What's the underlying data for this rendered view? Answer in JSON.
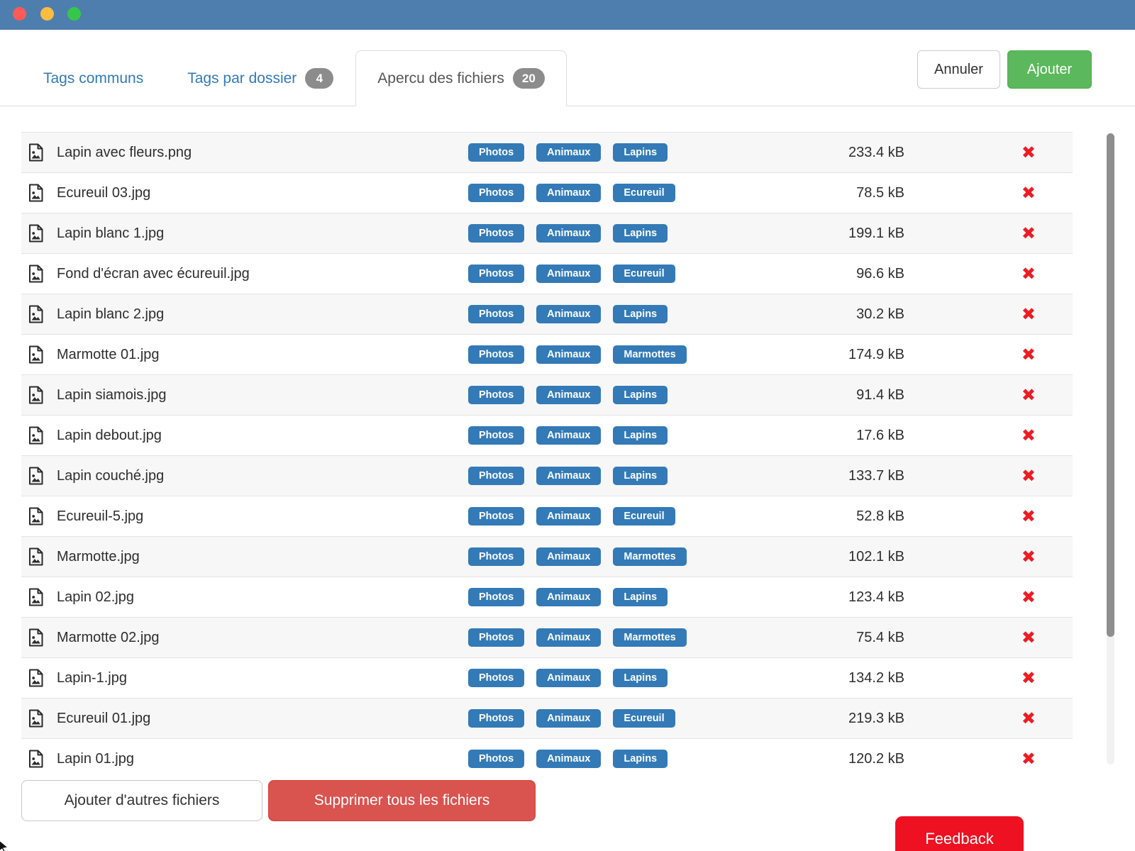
{
  "window": {
    "titlebar_color": "#4e7ead",
    "traffic_lights": [
      "close",
      "minimize",
      "maximize"
    ]
  },
  "tabs": [
    {
      "label": "Tags communs",
      "badge": "",
      "active": false
    },
    {
      "label": "Tags par dossier",
      "badge": "4",
      "active": false
    },
    {
      "label": "Apercu des fichiers",
      "badge": "20",
      "active": true
    }
  ],
  "header_buttons": {
    "cancel_label": "Annuler",
    "add_label": "Ajouter"
  },
  "file_list": {
    "delete_icon_glyph": "✖",
    "files": [
      {
        "name": "Lapin avec fleurs.png",
        "tags": [
          "Photos",
          "Animaux",
          "Lapins"
        ],
        "size": "233.4 kB"
      },
      {
        "name": "Ecureuil 03.jpg",
        "tags": [
          "Photos",
          "Animaux",
          "Ecureuil"
        ],
        "size": "78.5 kB"
      },
      {
        "name": "Lapin blanc 1.jpg",
        "tags": [
          "Photos",
          "Animaux",
          "Lapins"
        ],
        "size": "199.1 kB"
      },
      {
        "name": "Fond d'écran avec écureuil.jpg",
        "tags": [
          "Photos",
          "Animaux",
          "Ecureuil"
        ],
        "size": "96.6 kB"
      },
      {
        "name": "Lapin blanc 2.jpg",
        "tags": [
          "Photos",
          "Animaux",
          "Lapins"
        ],
        "size": "30.2 kB"
      },
      {
        "name": "Marmotte 01.jpg",
        "tags": [
          "Photos",
          "Animaux",
          "Marmottes"
        ],
        "size": "174.9 kB"
      },
      {
        "name": "Lapin siamois.jpg",
        "tags": [
          "Photos",
          "Animaux",
          "Lapins"
        ],
        "size": "91.4 kB"
      },
      {
        "name": "Lapin debout.jpg",
        "tags": [
          "Photos",
          "Animaux",
          "Lapins"
        ],
        "size": "17.6 kB"
      },
      {
        "name": "Lapin couché.jpg",
        "tags": [
          "Photos",
          "Animaux",
          "Lapins"
        ],
        "size": "133.7 kB"
      },
      {
        "name": "Ecureuil-5.jpg",
        "tags": [
          "Photos",
          "Animaux",
          "Ecureuil"
        ],
        "size": "52.8 kB"
      },
      {
        "name": "Marmotte.jpg",
        "tags": [
          "Photos",
          "Animaux",
          "Marmottes"
        ],
        "size": "102.1 kB"
      },
      {
        "name": "Lapin 02.jpg",
        "tags": [
          "Photos",
          "Animaux",
          "Lapins"
        ],
        "size": "123.4 kB"
      },
      {
        "name": "Marmotte 02.jpg",
        "tags": [
          "Photos",
          "Animaux",
          "Marmottes"
        ],
        "size": "75.4 kB"
      },
      {
        "name": "Lapin-1.jpg",
        "tags": [
          "Photos",
          "Animaux",
          "Lapins"
        ],
        "size": "134.2 kB"
      },
      {
        "name": "Ecureuil 01.jpg",
        "tags": [
          "Photos",
          "Animaux",
          "Ecureuil"
        ],
        "size": "219.3 kB"
      },
      {
        "name": "Lapin 01.jpg",
        "tags": [
          "Photos",
          "Animaux",
          "Lapins"
        ],
        "size": "120.2 kB"
      }
    ]
  },
  "footer": {
    "add_more_label": "Ajouter d'autres fichiers",
    "delete_all_label": "Supprimer tous les fichiers",
    "feedback_label": "Feedback"
  },
  "colors": {
    "titlebar": "#4e7ead",
    "tab_link": "#337ab7",
    "tag_badge": "#337ab7",
    "count_badge": "#8c8c8c",
    "add_button": "#5cb85c",
    "delete_all_button": "#d9534f",
    "feedback_button": "#ee1122",
    "delete_icon": "#ed1c24",
    "row_stripe": "#f7f7f7"
  }
}
